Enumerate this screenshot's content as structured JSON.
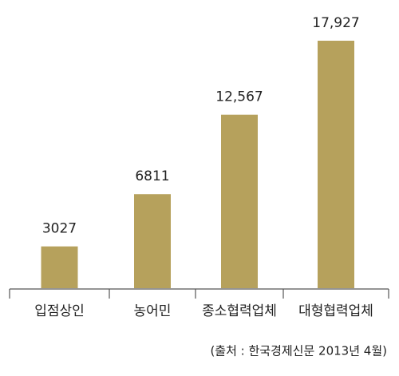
{
  "chart_data": {
    "type": "bar",
    "categories": [
      "입점상인",
      "농어민",
      "종소협력업체",
      "대형협력업체"
    ],
    "values": [
      3027,
      6811,
      12567,
      17927
    ],
    "value_labels": [
      "3027",
      "6811",
      "12,567",
      "17,927"
    ],
    "color": "#b6a15c",
    "source": "(출처 : 한국경제신문 2013년 4월)"
  }
}
